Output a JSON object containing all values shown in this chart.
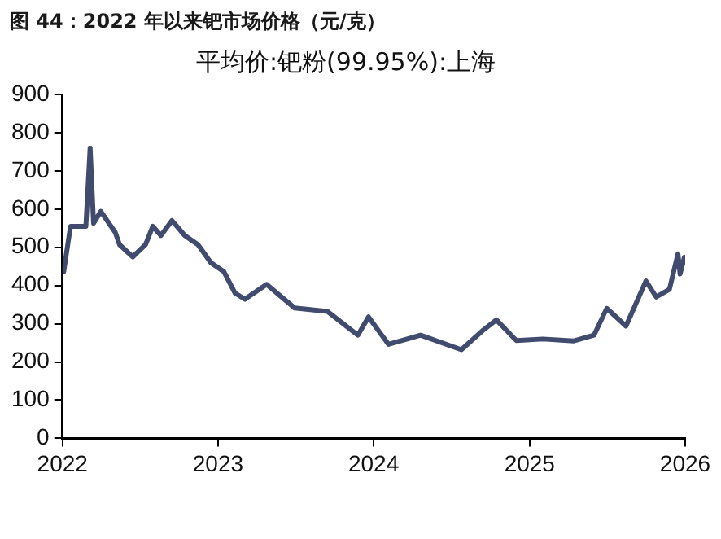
{
  "chart_data": {
    "type": "line",
    "title": "图 44：2022 年以来钯市场价格（元/克）",
    "subtitle": "平均价:钯粉(99.95%):上海",
    "x": [
      "2022-01-04",
      "2022-01-20",
      "2022-02-25",
      "2022-03-07",
      "2022-03-15",
      "2022-04-01",
      "2022-05-05",
      "2022-05-15",
      "2022-06-15",
      "2022-07-15",
      "2022-08-01",
      "2022-08-20",
      "2022-09-15",
      "2022-10-15",
      "2022-11-15",
      "2022-12-15",
      "2023-01-15",
      "2023-02-10",
      "2023-03-05",
      "2023-04-25",
      "2023-06-30",
      "2023-09-15",
      "2023-11-25",
      "2023-12-20",
      "2024-02-05",
      "2024-04-20",
      "2024-07-25",
      "2024-09-15",
      "2024-10-15",
      "2024-12-01",
      "2025-02-01",
      "2025-04-15",
      "2025-06-01",
      "2025-07-01",
      "2025-08-15",
      "2025-10-01",
      "2025-10-25",
      "2025-11-25",
      "2025-12-15",
      "2025-12-20",
      "2025-12-30"
    ],
    "series": [
      {
        "color": "#414b6e",
        "values": [
          436,
          555,
          555,
          760,
          563,
          594,
          539,
          507,
          475,
          507,
          555,
          531,
          570,
          531,
          507,
          460,
          436,
          380,
          364,
          403,
          341,
          332,
          270,
          318,
          246,
          270,
          232,
          284,
          310,
          256,
          260,
          255,
          270,
          340,
          294,
          412,
          370,
          390,
          483,
          430,
          474
        ]
      }
    ],
    "xlim": [
      "2022",
      "2026"
    ],
    "xticks": [
      "2022",
      "2023",
      "2024",
      "2025",
      "2026"
    ],
    "ylim": [
      0,
      900
    ],
    "yticks": [
      0,
      100,
      200,
      300,
      400,
      500,
      600,
      700,
      800,
      900
    ],
    "grid": false,
    "legend": false,
    "marker": "none",
    "line_style": "solid"
  }
}
